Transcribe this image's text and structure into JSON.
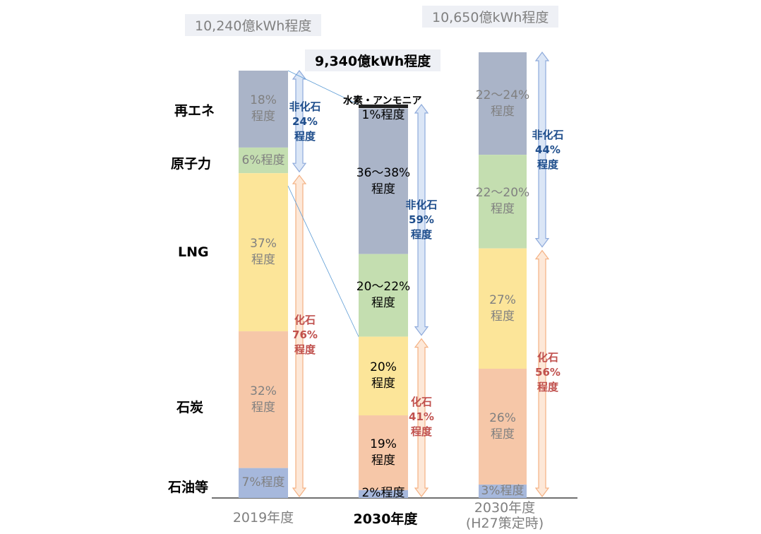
{
  "chart_data": {
    "type": "bar",
    "subtype": "stacked-100",
    "categories": [
      "2019年度",
      "2030年度",
      "2030年度\n(H27策定時)"
    ],
    "totals": [
      "10,240億kWh程度",
      "9,340億kWh程度",
      "10,650億kWh程度"
    ],
    "series_labels": [
      "再エネ",
      "原子力",
      "LNG",
      "石炭",
      "石油等"
    ],
    "hydrogen_label": "水素・アンモニア",
    "colors": {
      "renewable": "#aab4c8",
      "nuclear": "#c4deb0",
      "lng": "#fce599",
      "coal": "#f6c7a8",
      "oil": "#a6b8dc",
      "hydrogen": "#222222",
      "arrow_blue": "#dbe6f6",
      "arrow_orange": "#fde8d8",
      "text_blue": "#1f4e8c",
      "text_red": "#c0504d",
      "muted_text": "#808080"
    },
    "bars": [
      {
        "category": "2019年度",
        "emphasis": false,
        "segments": [
          {
            "series": "再エネ",
            "value": 18,
            "label": "18%\n程度"
          },
          {
            "series": "原子力",
            "value": 6,
            "label": "6%程度"
          },
          {
            "series": "LNG",
            "value": 37,
            "label": "37%\n程度"
          },
          {
            "series": "石炭",
            "value": 32,
            "label": "32%\n程度"
          },
          {
            "series": "石油等",
            "value": 7,
            "label": "7%程度"
          }
        ],
        "annotations": [
          {
            "text": "非化石\n24%\n程度",
            "kind": "non-fossil",
            "value": 24
          },
          {
            "text": "化石\n76%\n程度",
            "kind": "fossil",
            "value": 76
          }
        ]
      },
      {
        "category": "2030年度",
        "emphasis": true,
        "segments": [
          {
            "series": "水素・アンモニア",
            "value": 1,
            "label": "1%程度"
          },
          {
            "series": "再エネ",
            "value": 37,
            "label": "36～38%\n程度"
          },
          {
            "series": "原子力",
            "value": 21,
            "label": "20～22%\n程度"
          },
          {
            "series": "LNG",
            "value": 20,
            "label": "20%\n程度"
          },
          {
            "series": "石炭",
            "value": 19,
            "label": "19%\n程度"
          },
          {
            "series": "石油等",
            "value": 2,
            "label": "2%程度"
          }
        ],
        "annotations": [
          {
            "text": "非化石\n59%\n程度",
            "kind": "non-fossil",
            "value": 59
          },
          {
            "text": "化石\n41%\n程度",
            "kind": "fossil",
            "value": 41
          }
        ]
      },
      {
        "category": "2030年度\n(H27策定時)",
        "emphasis": false,
        "segments": [
          {
            "series": "再エネ",
            "value": 23,
            "label": "22～24%\n程度"
          },
          {
            "series": "原子力",
            "value": 21,
            "label": "22～20%\n程度"
          },
          {
            "series": "LNG",
            "value": 27,
            "label": "27%\n程度"
          },
          {
            "series": "石炭",
            "value": 26,
            "label": "26%\n程度"
          },
          {
            "series": "石油等",
            "value": 3,
            "label": "3%程度"
          }
        ],
        "annotations": [
          {
            "text": "非化石\n44%\n程度",
            "kind": "non-fossil",
            "value": 44
          },
          {
            "text": "化石\n56%\n程度",
            "kind": "fossil",
            "value": 56
          }
        ]
      }
    ]
  }
}
